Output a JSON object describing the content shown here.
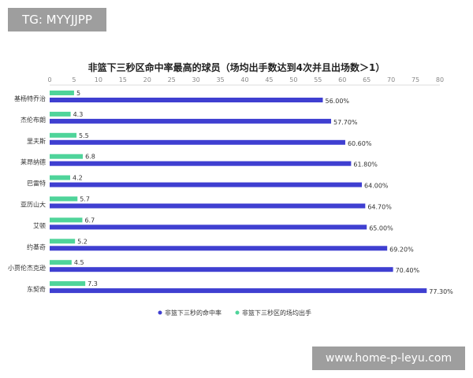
{
  "watermarks": {
    "top_left": "TG: MYYJJPP",
    "bottom_right": "www.home-p-leyu.com"
  },
  "chart_data": {
    "type": "bar",
    "orientation": "horizontal",
    "title": "非篮下三秒区命中率最高的球员（场均出手数达到4次并且出场数＞1）",
    "categories": [
      "基杨特乔治",
      "杰伦布朗",
      "里夫斯",
      "莱昂纳德",
      "巴雷特",
      "亚历山大",
      "艾顿",
      "约基奇",
      "小贾伦杰克逊",
      "东契奇"
    ],
    "series": [
      {
        "name": "非篮下三秒的命中率",
        "color": "#3f3fd1",
        "values": [
          56.0,
          57.7,
          60.6,
          61.8,
          64.0,
          64.7,
          65.0,
          69.2,
          70.4,
          77.3
        ],
        "labels": [
          "56.00%",
          "57.70%",
          "60.60%",
          "61.80%",
          "64.00%",
          "64.70%",
          "65.00%",
          "69.20%",
          "70.40%",
          "77.30%"
        ]
      },
      {
        "name": "非篮下三秒区的场均出手",
        "color": "#4fd49a",
        "values": [
          5,
          4.3,
          5.5,
          6.8,
          4.2,
          5.7,
          6.7,
          5.2,
          4.5,
          7.3
        ],
        "labels": [
          "5",
          "4.3",
          "5.5",
          "6.8",
          "4.2",
          "5.7",
          "6.7",
          "5.2",
          "4.5",
          "7.3"
        ]
      }
    ],
    "xlim": [
      0,
      80
    ],
    "xticks": [
      "0",
      "5",
      "10",
      "15",
      "20",
      "25",
      "30",
      "35",
      "40",
      "45",
      "50",
      "55",
      "60",
      "65",
      "70",
      "75",
      "80"
    ],
    "x_axis_position": "top",
    "legend_position": "bottom",
    "grid": false
  }
}
